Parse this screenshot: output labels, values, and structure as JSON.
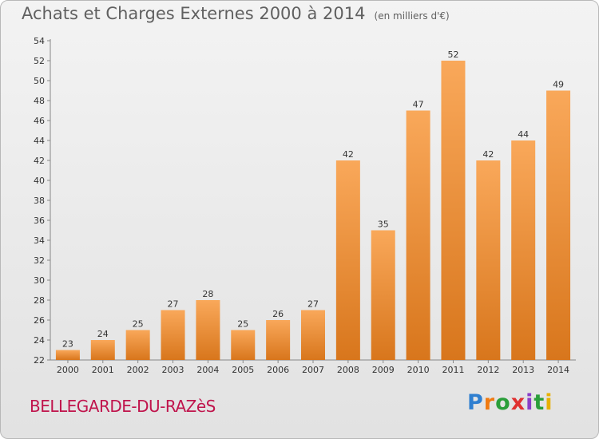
{
  "header": {
    "title": "Achats et Charges Externes 2000 à 2014",
    "unit": "(en milliers d'€)"
  },
  "footer": {
    "place": "BELLEGARDE-DU-RAZèS",
    "logo": "Proxiti"
  },
  "colors": {
    "bar_light": "#f9a85a",
    "bar_dark": "#d8761c",
    "place": "#c0144c"
  },
  "chart_data": {
    "type": "bar",
    "title": "Achats et Charges Externes 2000 à 2014",
    "subtitle": "(en milliers d'€)",
    "categories": [
      "2000",
      "2001",
      "2002",
      "2003",
      "2004",
      "2005",
      "2006",
      "2007",
      "2008",
      "2009",
      "2010",
      "2011",
      "2012",
      "2013",
      "2014"
    ],
    "values": [
      23,
      24,
      25,
      27,
      28,
      25,
      26,
      27,
      42,
      35,
      47,
      52,
      42,
      44,
      49
    ],
    "ylim": [
      22,
      54
    ],
    "yticks": [
      22,
      24,
      26,
      28,
      30,
      32,
      34,
      36,
      38,
      40,
      42,
      44,
      46,
      48,
      50,
      52,
      54
    ],
    "grid": false,
    "legend": "none"
  }
}
